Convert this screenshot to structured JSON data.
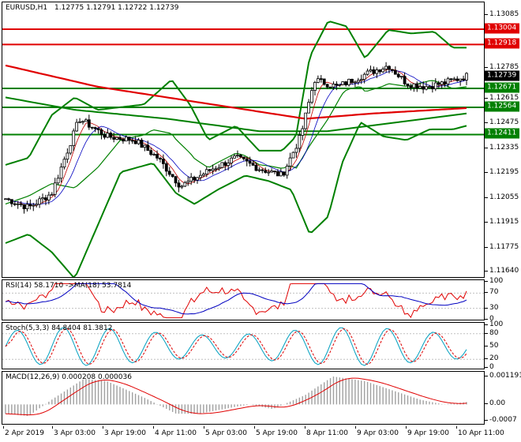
{
  "header": {
    "symbol": "EURUSD,H1",
    "ohlc": "1.12775 1.12791 1.12722 1.12739"
  },
  "price_axis": {
    "labels": [
      "1.13085",
      "1.12915",
      "1.12785",
      "1.12615",
      "1.12475",
      "1.12335",
      "1.12195",
      "1.12055",
      "1.11915",
      "1.11775",
      "1.11640"
    ]
  },
  "levels": [
    {
      "name": "res-3",
      "value": "1.13004",
      "price": 1.13004,
      "color": "#e00000"
    },
    {
      "name": "res-2",
      "value": "1.12918",
      "price": 1.12918,
      "color": "#e00000"
    },
    {
      "name": "current",
      "value": "1.12739",
      "price": 1.12739,
      "color": "#000000"
    },
    {
      "name": "sup-1",
      "value": "1.12671",
      "price": 1.12671,
      "color": "#008000"
    },
    {
      "name": "sup-2",
      "value": "1.12564",
      "price": 1.12564,
      "color": "#008000"
    },
    {
      "name": "sup-3",
      "value": "1.12411",
      "price": 1.12411,
      "color": "#008000"
    }
  ],
  "rsi": {
    "title": "RSI(14) 58.1710  ->MA(18) 53.7814",
    "axis": [
      "100",
      "70",
      "30",
      "0"
    ]
  },
  "stoch": {
    "title": "Stoch(5,3,3) 84.8404 81.3812",
    "axis": [
      "100",
      "80",
      "50",
      "20",
      "0"
    ]
  },
  "macd": {
    "title": "MACD(12,26,9) 0.000208 0.000036",
    "axis": [
      "0.001191",
      "0.00",
      "-0.0007"
    ]
  },
  "time_axis": [
    "2 Apr 2019",
    "3 Apr 03:00",
    "3 Apr 19:00",
    "4 Apr 11:00",
    "5 Apr 03:00",
    "5 Apr 19:00",
    "8 Apr 11:00",
    "9 Apr 03:00",
    "9 Apr 19:00",
    "10 Apr 11:00"
  ],
  "colors": {
    "bollinger": "#008000",
    "ma_slow": "#e00000",
    "ma_fast": "#008000",
    "candles": "#000000",
    "rsi_line": "#e00000",
    "rsi_ma": "#0000c0",
    "stoch_main": "#00a0c0",
    "stoch_signal": "#e00000",
    "macd_hist": "#a0a0a0",
    "macd_signal": "#e00000"
  }
}
